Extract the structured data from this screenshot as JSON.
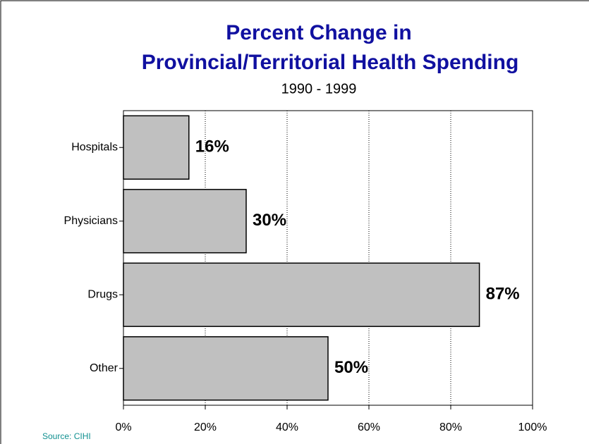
{
  "chart_data": {
    "type": "bar",
    "orientation": "horizontal",
    "title": [
      "Percent Change in",
      "Provincial/Territorial Health Spending"
    ],
    "subtitle": "1990 - 1999",
    "annotation": "Source: CIHI",
    "categories": [
      "Hospitals",
      "Physicians",
      "Drugs",
      "Other"
    ],
    "values": [
      16,
      30,
      87,
      50
    ],
    "value_labels": [
      "16%",
      "30%",
      "87%",
      "50%"
    ],
    "color": "#c0c0c0",
    "xlim": [
      0,
      100
    ],
    "xticks": [
      {
        "value": 0,
        "label": "0%"
      },
      {
        "value": 20,
        "label": "20%"
      },
      {
        "value": 40,
        "label": "40%"
      },
      {
        "value": 60,
        "label": "60%"
      },
      {
        "value": 80,
        "label": "80%"
      },
      {
        "value": 100,
        "label": "100%"
      }
    ],
    "grid": true
  }
}
